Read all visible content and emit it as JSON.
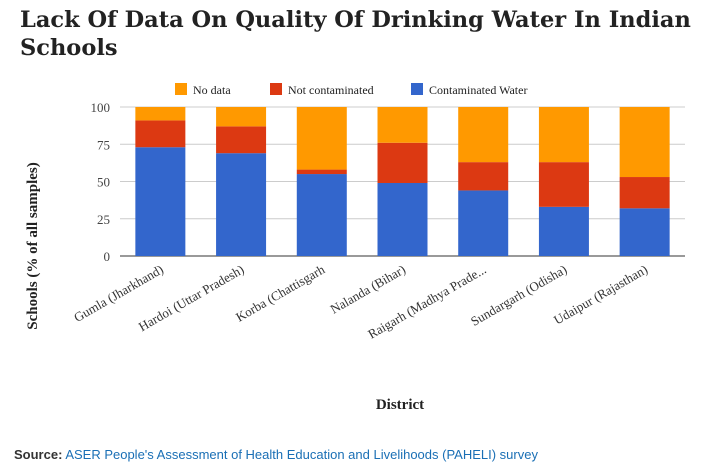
{
  "chart_data": {
    "type": "bar",
    "stacked": true,
    "title": "Lack Of Data On Quality Of Drinking Water In Indian Schools",
    "xlabel": "District",
    "ylabel": "Schools (% of all samples)",
    "ylim": [
      0,
      100
    ],
    "yticks": [
      0,
      25,
      50,
      75,
      100
    ],
    "legend_position": "top",
    "categories": [
      "Gumla (Jharkhand)",
      "Hardoi (Uttar Pradesh)",
      "Korba (Chattisgarh",
      "Nalanda (Bihar)",
      "Raigarh (Madhya Prade...",
      "Sundargarh (Odisha)",
      "Udaipur (Rajasthan)"
    ],
    "series": [
      {
        "name": "Contaminated Water",
        "color": "#3366cc",
        "values": [
          73,
          69,
          55,
          49,
          44,
          33,
          32
        ]
      },
      {
        "name": "Not contaminated",
        "color": "#dc3912",
        "values": [
          18,
          18,
          3,
          27,
          19,
          30,
          21
        ]
      },
      {
        "name": "No data",
        "color": "#ff9900",
        "values": [
          9,
          13,
          42,
          24,
          37,
          37,
          47
        ]
      }
    ],
    "legend_order": [
      "No data",
      "Not contaminated",
      "Contaminated Water"
    ]
  },
  "footer": {
    "source_label": "Source:",
    "source_text": "ASER People's Assessment of Health Education and Livelihoods (PAHELI) survey"
  }
}
